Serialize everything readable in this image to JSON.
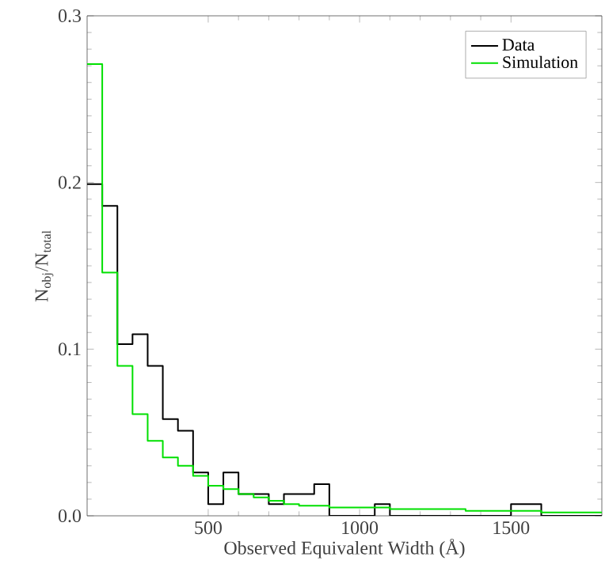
{
  "chart_data": {
    "type": "histogram",
    "xlabel": "Observed Equivalent Width (Å)",
    "ylabel": "N$_{obj}$/N$_{total}$",
    "bins": [
      100,
      150,
      200,
      250,
      300,
      350,
      400,
      450,
      500,
      550,
      600,
      650,
      700,
      750,
      800,
      850,
      900,
      950,
      1000,
      1050,
      1100,
      1150,
      1200,
      1250,
      1300,
      1350,
      1400,
      1450,
      1500,
      1550,
      1600,
      1650,
      1700,
      1750,
      1800
    ],
    "series": [
      {
        "name": "Data",
        "color": "#000000",
        "values": [
          0.199,
          0.186,
          0.103,
          0.109,
          0.09,
          0.058,
          0.051,
          0.026,
          0.007,
          0.026,
          0.013,
          0.013,
          0.007,
          0.013,
          0.013,
          0.019,
          0,
          0,
          0,
          0.007,
          0,
          0,
          0,
          0,
          0,
          0,
          0,
          0,
          0.007,
          0.007,
          0,
          0,
          0,
          0
        ]
      },
      {
        "name": "Simulation",
        "color": "#00e000",
        "values": [
          0.271,
          0.146,
          0.09,
          0.061,
          0.045,
          0.035,
          0.03,
          0.024,
          0.018,
          0.016,
          0.013,
          0.011,
          0.009,
          0.007,
          0.006,
          0.006,
          0.005,
          0.005,
          0.005,
          0.005,
          0.004,
          0.004,
          0.004,
          0.004,
          0.004,
          0.003,
          0.003,
          0.003,
          0.003,
          0.003,
          0.002,
          0.002,
          0.002,
          0.002
        ]
      }
    ],
    "xlim": [
      100,
      1800
    ],
    "ylim": [
      0,
      0.3
    ],
    "xticks": [
      500,
      1000,
      1500
    ],
    "yticks": [
      {
        "value": 0,
        "label": "0.0"
      },
      {
        "value": 0.1,
        "label": "0.1"
      },
      {
        "value": 0.2,
        "label": "0.2"
      },
      {
        "value": 0.3,
        "label": "0.3"
      }
    ],
    "legend": "top right"
  }
}
